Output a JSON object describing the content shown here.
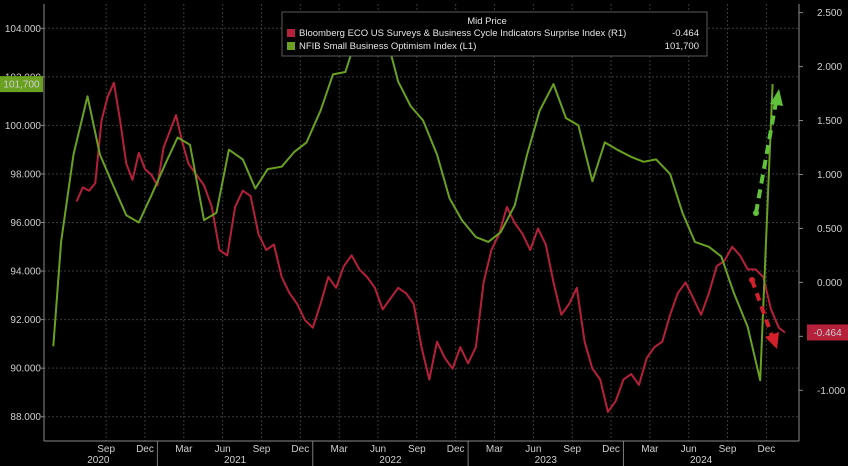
{
  "chart_data": {
    "type": "line",
    "title": "Mid Price",
    "x_axis": {
      "month_labels": [
        "Sep",
        "Dec",
        "Mar",
        "Jun",
        "Sep",
        "Dec",
        "Mar",
        "Jun",
        "Sep",
        "Dec",
        "Mar",
        "Jun",
        "Sep",
        "Dec",
        "Mar",
        "Jun",
        "Sep",
        "Dec"
      ],
      "year_labels": [
        "2020",
        "2021",
        "2022",
        "2023",
        "2024"
      ]
    },
    "left_axis": {
      "ticks": [
        "104.000",
        "102.000",
        "100.000",
        "98.000",
        "96.000",
        "94.000",
        "92.000",
        "90.000",
        "88.000"
      ],
      "ylim": [
        87.0,
        105.0
      ]
    },
    "right_axis": {
      "ticks": [
        "2.500",
        "2.000",
        "1.500",
        "1.000",
        "0.500",
        "0.000",
        "-0.500",
        "-1.000"
      ],
      "ylim": [
        -1.47,
        2.58
      ]
    },
    "series": [
      {
        "name": "Bloomberg ECO US Surveys & Business Cycle Indicators Surprise Index (R1)",
        "last_label": "-0.464",
        "axis": "right",
        "color": "#b5203a",
        "x": [
          2020.48,
          2020.52,
          2020.56,
          2020.6,
          2020.64,
          2020.68,
          2020.72,
          2020.76,
          2020.8,
          2020.84,
          2020.88,
          2020.92,
          2020.96,
          2021.0,
          2021.04,
          2021.08,
          2021.12,
          2021.16,
          2021.2,
          2021.25,
          2021.3,
          2021.35,
          2021.4,
          2021.45,
          2021.5,
          2021.55,
          2021.6,
          2021.65,
          2021.7,
          2021.75,
          2021.8,
          2021.85,
          2021.9,
          2021.95,
          2022.0,
          2022.05,
          2022.1,
          2022.15,
          2022.2,
          2022.25,
          2022.3,
          2022.35,
          2022.4,
          2022.45,
          2022.5,
          2022.55,
          2022.6,
          2022.65,
          2022.7,
          2022.75,
          2022.8,
          2022.85,
          2022.9,
          2022.95,
          2023.0,
          2023.05,
          2023.1,
          2023.15,
          2023.2,
          2023.25,
          2023.3,
          2023.35,
          2023.4,
          2023.45,
          2023.5,
          2023.55,
          2023.6,
          2023.65,
          2023.7,
          2023.75,
          2023.8,
          2023.85,
          2023.9,
          2023.95,
          2024.0,
          2024.05,
          2024.1,
          2024.15,
          2024.2,
          2024.25,
          2024.3,
          2024.35,
          2024.4,
          2024.45,
          2024.5,
          2024.55,
          2024.6,
          2024.65,
          2024.7,
          2024.75,
          2024.8,
          2024.85,
          2024.9,
          2024.95,
          2025.0,
          2025.04
        ],
        "values": [
          0.75,
          0.88,
          0.85,
          0.92,
          1.5,
          1.72,
          1.85,
          1.5,
          1.1,
          0.95,
          1.2,
          1.05,
          1.0,
          0.9,
          1.25,
          1.4,
          1.55,
          1.3,
          1.1,
          1.0,
          0.9,
          0.7,
          0.3,
          0.25,
          0.7,
          0.85,
          0.8,
          0.45,
          0.3,
          0.35,
          0.05,
          -0.1,
          -0.2,
          -0.35,
          -0.42,
          -0.2,
          0.05,
          -0.05,
          0.15,
          0.25,
          0.12,
          0.05,
          -0.05,
          -0.25,
          -0.15,
          -0.05,
          -0.1,
          -0.2,
          -0.6,
          -0.9,
          -0.55,
          -0.7,
          -0.8,
          -0.6,
          -0.75,
          -0.6,
          0.0,
          0.3,
          0.45,
          0.7,
          0.55,
          0.45,
          0.3,
          0.5,
          0.35,
          0.0,
          -0.3,
          -0.2,
          -0.05,
          -0.55,
          -0.8,
          -0.9,
          -1.2,
          -1.1,
          -0.9,
          -0.85,
          -0.95,
          -0.7,
          -0.6,
          -0.55,
          -0.3,
          -0.1,
          0.0,
          -0.15,
          -0.3,
          -0.1,
          0.15,
          0.2,
          0.33,
          0.25,
          0.12,
          0.12,
          0.05,
          -0.25,
          -0.42,
          -0.464
        ]
      },
      {
        "name": "NFIB Small Business Optimism Index (L1)",
        "last_label": "101,700",
        "axis": "left",
        "color": "#6aa121",
        "x": [
          2020.33,
          2020.38,
          2020.46,
          2020.55,
          2020.63,
          2020.71,
          2020.8,
          2020.88,
          2020.96,
          2021.05,
          2021.13,
          2021.21,
          2021.3,
          2021.38,
          2021.46,
          2021.55,
          2021.63,
          2021.71,
          2021.8,
          2021.88,
          2021.96,
          2022.05,
          2022.13,
          2022.21,
          2022.3,
          2022.38,
          2022.46,
          2022.55,
          2022.63,
          2022.71,
          2022.8,
          2022.88,
          2022.96,
          2023.05,
          2023.13,
          2023.21,
          2023.3,
          2023.38,
          2023.46,
          2023.55,
          2023.63,
          2023.71,
          2023.8,
          2023.88,
          2023.96,
          2024.05,
          2024.13,
          2024.21,
          2024.3,
          2024.38,
          2024.46,
          2024.55,
          2024.63,
          2024.71,
          2024.8,
          2024.88,
          2024.96
        ],
        "values": [
          90.9,
          95.2,
          98.8,
          101.2,
          98.8,
          97.6,
          96.3,
          96.0,
          97.1,
          98.4,
          99.5,
          99.2,
          96.1,
          96.4,
          99.0,
          98.6,
          97.4,
          98.2,
          98.3,
          98.9,
          99.3,
          100.6,
          102.1,
          102.2,
          104.0,
          104.0,
          104.0,
          101.8,
          100.8,
          100.2,
          98.8,
          97.0,
          96.1,
          95.4,
          95.2,
          95.6,
          96.7,
          98.8,
          100.6,
          101.7,
          100.3,
          100.0,
          97.7,
          99.3,
          99.0,
          98.7,
          98.5,
          98.6,
          98.0,
          96.4,
          95.2,
          95.0,
          94.6,
          93.1,
          91.7,
          89.5,
          101.7
        ]
      }
    ],
    "legend": {
      "title": "Mid Price",
      "entries": [
        {
          "label": "Bloomberg ECO US Surveys & Business Cycle Indicators Surprise Index  (R1)",
          "value": "-0.464",
          "color": "#b5203a"
        },
        {
          "label": "NFIB Small Business Optimism Index  (L1)",
          "value": "101,700",
          "color": "#6aa121"
        }
      ],
      "placement": "top-center"
    },
    "annotations": [
      {
        "type": "arrow",
        "direction": "up",
        "color": "#5fc23a",
        "style": "dashed"
      },
      {
        "type": "arrow",
        "direction": "down",
        "color": "#d3202a",
        "style": "dashed"
      }
    ],
    "grid": true,
    "colors": {
      "background": "#000000",
      "grid": "#3a3a3a",
      "axis_text": "#cfcfcf"
    }
  }
}
